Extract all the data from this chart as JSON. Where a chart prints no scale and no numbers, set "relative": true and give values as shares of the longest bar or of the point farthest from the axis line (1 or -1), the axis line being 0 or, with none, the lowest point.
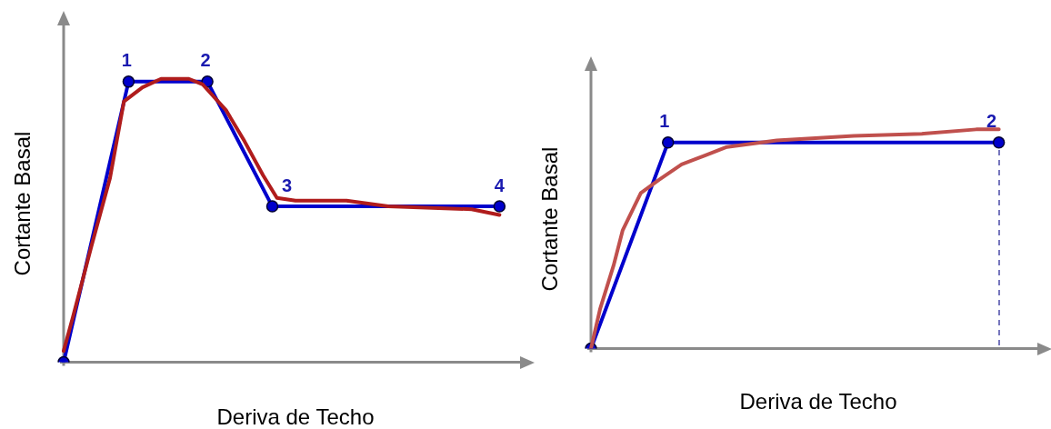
{
  "chart_data": [
    {
      "type": "line",
      "relative": true,
      "xlabel": "Deriva de Techo",
      "ylabel": "Cortante Basal",
      "line_style": "solid",
      "categories": [
        null,
        null,
        null,
        null,
        null,
        null,
        null,
        null,
        null,
        null,
        null,
        null,
        null,
        null,
        null,
        null,
        null,
        null,
        null,
        null,
        null,
        null,
        null,
        null,
        null,
        null,
        null,
        null,
        null,
        null,
        null,
        null,
        null,
        null,
        null,
        null,
        null,
        null,
        null,
        null,
        null,
        null,
        null,
        null,
        null,
        null,
        null,
        null,
        null,
        null,
        null,
        null,
        null,
        null,
        null,
        null,
        null,
        null,
        null,
        null,
        null,
        null,
        null,
        null,
        null,
        null,
        null,
        null,
        null,
        null,
        null,
        null,
        null,
        null,
        null,
        null,
        null,
        null,
        null,
        null,
        null,
        null,
        null,
        null,
        null,
        null,
        null,
        null,
        null,
        null,
        null,
        null,
        null,
        null,
        null,
        null,
        null,
        null,
        null,
        null,
        null
      ],
      "series": [
        {
          "color": "#b01c1c",
          "marker": "none",
          "values": [
            0.04,
            null,
            0.16,
            null,
            null,
            null,
            0.41,
            null,
            null,
            null,
            0.65,
            null,
            0.83,
            0.92,
            null,
            null,
            null,
            0.97,
            null,
            null,
            null,
            1,
            null,
            null,
            null,
            null,
            null,
            1,
            null,
            null,
            0.98,
            null,
            null,
            null,
            null,
            0.89,
            null,
            null,
            null,
            0.78,
            null,
            null,
            null,
            0.66,
            null,
            null,
            0.58,
            null,
            null,
            null,
            0.57,
            null,
            null,
            null,
            null,
            null,
            null,
            null,
            null,
            null,
            null,
            0.57,
            null,
            null,
            null,
            null,
            null,
            null,
            null,
            null,
            0.55,
            null,
            null,
            null,
            null,
            null,
            null,
            null,
            null,
            null,
            null,
            null,
            null,
            null,
            null,
            null,
            null,
            null,
            0.54,
            null,
            null,
            null,
            null,
            null,
            0.52,
            null,
            null,
            null,
            null,
            null,
            null
          ]
        },
        {
          "color": "#0000cc",
          "marker": "circle",
          "values": [
            0,
            null,
            null,
            null,
            null,
            null,
            null,
            null,
            null,
            null,
            null,
            null,
            null,
            null,
            0.99,
            null,
            null,
            null,
            null,
            null,
            null,
            null,
            null,
            null,
            null,
            null,
            null,
            null,
            null,
            null,
            null,
            0.99,
            null,
            null,
            null,
            null,
            null,
            null,
            null,
            null,
            null,
            null,
            null,
            null,
            null,
            0.55,
            null,
            null,
            null,
            null,
            null,
            null,
            null,
            null,
            null,
            null,
            null,
            null,
            null,
            null,
            null,
            null,
            null,
            null,
            null,
            null,
            null,
            null,
            null,
            null,
            null,
            null,
            null,
            null,
            null,
            null,
            null,
            null,
            null,
            null,
            null,
            null,
            null,
            null,
            null,
            null,
            null,
            null,
            null,
            null,
            null,
            null,
            null,
            null,
            0.55,
            null,
            null,
            null,
            null,
            null,
            null
          ]
        }
      ],
      "annotations": [
        "1",
        "2",
        "3",
        "4"
      ]
    },
    {
      "type": "line",
      "relative": true,
      "xlabel": "Deriva de Techo",
      "ylabel": "Cortante Basal",
      "line_style": "solid",
      "categories": [
        null,
        null,
        null,
        null,
        null,
        null,
        null,
        null,
        null,
        null,
        null,
        null,
        null,
        null,
        null,
        null,
        null,
        null,
        null,
        null,
        null,
        null,
        null,
        null,
        null,
        null,
        null,
        null,
        null,
        null,
        null,
        null,
        null,
        null,
        null,
        null,
        null,
        null,
        null,
        null,
        null,
        null,
        null,
        null,
        null,
        null,
        null,
        null,
        null,
        null,
        null,
        null,
        null,
        null,
        null,
        null,
        null,
        null,
        null,
        null,
        null,
        null,
        null,
        null,
        null,
        null,
        null,
        null,
        null,
        null,
        null,
        null,
        null,
        null,
        null,
        null,
        null,
        null,
        null,
        null,
        null,
        null,
        null,
        null,
        null,
        null,
        null,
        null,
        null,
        null,
        null,
        null,
        null,
        null,
        null,
        null,
        null,
        null,
        null,
        null,
        null
      ],
      "series": [
        {
          "color": "#c0504d",
          "marker": "none",
          "values": [
            0,
            null,
            0.18,
            null,
            null,
            0.38,
            null,
            0.54,
            null,
            null,
            null,
            0.71,
            null,
            null,
            null,
            0.77,
            null,
            null,
            null,
            null,
            0.84,
            null,
            null,
            null,
            null,
            0.88,
            null,
            null,
            null,
            null,
            0.92,
            null,
            null,
            null,
            null,
            null,
            null,
            null,
            null,
            null,
            null,
            0.95,
            null,
            null,
            null,
            null,
            null,
            null,
            null,
            null,
            null,
            null,
            null,
            null,
            null,
            null,
            null,
            null,
            0.97,
            null,
            null,
            null,
            null,
            null,
            null,
            null,
            null,
            null,
            null,
            null,
            null,
            null,
            null,
            0.98,
            null,
            null,
            null,
            null,
            null,
            null,
            null,
            null,
            null,
            null,
            null,
            1,
            null,
            null,
            null,
            null,
            1,
            null,
            null,
            null,
            null,
            null,
            null,
            null,
            null,
            null,
            null
          ]
        },
        {
          "color": "#0000cc",
          "marker": "circle",
          "values": [
            0,
            null,
            null,
            null,
            null,
            null,
            null,
            null,
            null,
            null,
            null,
            null,
            null,
            null,
            null,
            null,
            null,
            0.94,
            null,
            null,
            null,
            null,
            null,
            null,
            null,
            null,
            null,
            null,
            null,
            null,
            null,
            null,
            null,
            null,
            null,
            null,
            null,
            null,
            null,
            null,
            null,
            null,
            null,
            null,
            null,
            null,
            null,
            null,
            null,
            null,
            null,
            null,
            null,
            null,
            null,
            null,
            null,
            null,
            null,
            null,
            null,
            null,
            null,
            null,
            null,
            null,
            null,
            null,
            null,
            null,
            null,
            null,
            null,
            null,
            null,
            null,
            null,
            null,
            null,
            null,
            null,
            null,
            null,
            null,
            null,
            null,
            null,
            null,
            null,
            null,
            0.94,
            null,
            null,
            null,
            null,
            null,
            null,
            null,
            null,
            null,
            null
          ]
        }
      ],
      "annotations": [
        "1",
        "2"
      ]
    }
  ]
}
